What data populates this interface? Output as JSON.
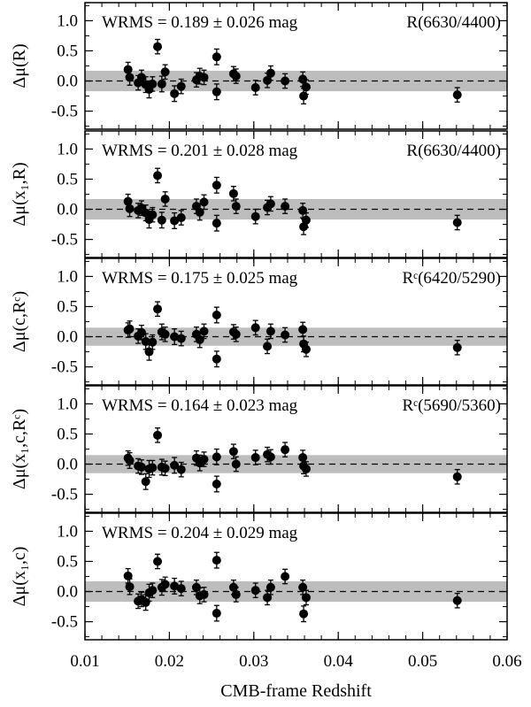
{
  "chart_data": {
    "type": "scatter",
    "xlabel": "CMB-frame Redshift",
    "xlim": [
      0.01,
      0.06
    ],
    "x_ticks": [
      "0.01",
      "0.02",
      "0.03",
      "0.04",
      "0.05",
      "0.06"
    ],
    "ylim": [
      -0.8,
      1.3
    ],
    "y_ticks": [
      "-0.5",
      "0.0",
      "0.5",
      "1.0"
    ],
    "zero_line": "dashed",
    "band_halfwidth": 0.17,
    "marker_color": "#000000",
    "band_color": "#bdbdbd",
    "panels": [
      {
        "ylabel": "Δμ(R)",
        "wrms": "WRMS = 0.189 ± 0.026 mag",
        "tag": "R(6630/4400)",
        "band": 0.17,
        "points": [
          {
            "x": 0.0151,
            "y": 0.19,
            "e": 0.12
          },
          {
            "x": 0.0153,
            "y": 0.06,
            "e": 0.13
          },
          {
            "x": 0.0163,
            "y": -0.03,
            "e": 0.12
          },
          {
            "x": 0.0167,
            "y": 0.06,
            "e": 0.12
          },
          {
            "x": 0.0172,
            "y": -0.06,
            "e": 0.13
          },
          {
            "x": 0.0176,
            "y": -0.14,
            "e": 0.14
          },
          {
            "x": 0.018,
            "y": -0.05,
            "e": 0.12
          },
          {
            "x": 0.0186,
            "y": 0.57,
            "e": 0.12
          },
          {
            "x": 0.0191,
            "y": -0.05,
            "e": 0.13
          },
          {
            "x": 0.0195,
            "y": 0.15,
            "e": 0.12
          },
          {
            "x": 0.0206,
            "y": -0.21,
            "e": 0.13
          },
          {
            "x": 0.0214,
            "y": -0.09,
            "e": 0.12
          },
          {
            "x": 0.0232,
            "y": 0.02,
            "e": 0.12
          },
          {
            "x": 0.0236,
            "y": 0.08,
            "e": 0.13
          },
          {
            "x": 0.0241,
            "y": 0.06,
            "e": 0.12
          },
          {
            "x": 0.0256,
            "y": 0.4,
            "e": 0.13
          },
          {
            "x": 0.0256,
            "y": -0.18,
            "e": 0.13
          },
          {
            "x": 0.0276,
            "y": 0.12,
            "e": 0.12
          },
          {
            "x": 0.0279,
            "y": 0.08,
            "e": 0.12
          },
          {
            "x": 0.0302,
            "y": -0.11,
            "e": 0.12
          },
          {
            "x": 0.0316,
            "y": 0.01,
            "e": 0.12
          },
          {
            "x": 0.032,
            "y": 0.13,
            "e": 0.12
          },
          {
            "x": 0.0337,
            "y": 0.0,
            "e": 0.12
          },
          {
            "x": 0.0358,
            "y": 0.03,
            "e": 0.12
          },
          {
            "x": 0.0359,
            "y": -0.25,
            "e": 0.13
          },
          {
            "x": 0.0362,
            "y": -0.1,
            "e": 0.12
          },
          {
            "x": 0.0541,
            "y": -0.23,
            "e": 0.12
          }
        ]
      },
      {
        "ylabel": "Δμ(x₁,R)",
        "wrms": "WRMS = 0.201 ± 0.028 mag",
        "tag": "R(6630/4400)",
        "band": 0.17,
        "points": [
          {
            "x": 0.0151,
            "y": 0.13,
            "e": 0.12
          },
          {
            "x": 0.0153,
            "y": 0.01,
            "e": 0.13
          },
          {
            "x": 0.0163,
            "y": -0.02,
            "e": 0.12
          },
          {
            "x": 0.0167,
            "y": 0.02,
            "e": 0.12
          },
          {
            "x": 0.0172,
            "y": -0.06,
            "e": 0.13
          },
          {
            "x": 0.0176,
            "y": -0.17,
            "e": 0.14
          },
          {
            "x": 0.018,
            "y": -0.09,
            "e": 0.12
          },
          {
            "x": 0.0186,
            "y": 0.56,
            "e": 0.12
          },
          {
            "x": 0.0191,
            "y": -0.18,
            "e": 0.13
          },
          {
            "x": 0.0195,
            "y": 0.17,
            "e": 0.12
          },
          {
            "x": 0.0206,
            "y": -0.19,
            "e": 0.13
          },
          {
            "x": 0.0214,
            "y": -0.14,
            "e": 0.12
          },
          {
            "x": 0.0232,
            "y": 0.05,
            "e": 0.12
          },
          {
            "x": 0.0236,
            "y": -0.05,
            "e": 0.13
          },
          {
            "x": 0.0241,
            "y": 0.12,
            "e": 0.12
          },
          {
            "x": 0.0256,
            "y": 0.4,
            "e": 0.13
          },
          {
            "x": 0.0256,
            "y": -0.23,
            "e": 0.13
          },
          {
            "x": 0.0276,
            "y": 0.26,
            "e": 0.12
          },
          {
            "x": 0.0279,
            "y": 0.05,
            "e": 0.12
          },
          {
            "x": 0.0302,
            "y": -0.12,
            "e": 0.12
          },
          {
            "x": 0.0316,
            "y": 0.03,
            "e": 0.12
          },
          {
            "x": 0.032,
            "y": 0.09,
            "e": 0.12
          },
          {
            "x": 0.0337,
            "y": 0.05,
            "e": 0.12
          },
          {
            "x": 0.0358,
            "y": -0.02,
            "e": 0.12
          },
          {
            "x": 0.0359,
            "y": -0.29,
            "e": 0.13
          },
          {
            "x": 0.0362,
            "y": -0.18,
            "e": 0.12
          },
          {
            "x": 0.0541,
            "y": -0.22,
            "e": 0.12
          }
        ]
      },
      {
        "ylabel": "Δμ(c,Rᶜ)",
        "wrms": "WRMS = 0.175 ± 0.025 mag",
        "tag": "Rᶜ(6420/5290)",
        "band": 0.15,
        "points": [
          {
            "x": 0.0151,
            "y": 0.11,
            "e": 0.12
          },
          {
            "x": 0.0153,
            "y": 0.13,
            "e": 0.13
          },
          {
            "x": 0.0163,
            "y": 0.01,
            "e": 0.12
          },
          {
            "x": 0.0167,
            "y": 0.07,
            "e": 0.12
          },
          {
            "x": 0.0172,
            "y": -0.08,
            "e": 0.13
          },
          {
            "x": 0.0176,
            "y": -0.25,
            "e": 0.14
          },
          {
            "x": 0.018,
            "y": -0.09,
            "e": 0.12
          },
          {
            "x": 0.0186,
            "y": 0.46,
            "e": 0.12
          },
          {
            "x": 0.0191,
            "y": 0.08,
            "e": 0.13
          },
          {
            "x": 0.0195,
            "y": 0.04,
            "e": 0.12
          },
          {
            "x": 0.0206,
            "y": 0.0,
            "e": 0.13
          },
          {
            "x": 0.0214,
            "y": -0.03,
            "e": 0.12
          },
          {
            "x": 0.0232,
            "y": 0.04,
            "e": 0.12
          },
          {
            "x": 0.0236,
            "y": -0.05,
            "e": 0.13
          },
          {
            "x": 0.0241,
            "y": 0.09,
            "e": 0.12
          },
          {
            "x": 0.0256,
            "y": 0.36,
            "e": 0.13
          },
          {
            "x": 0.0256,
            "y": -0.37,
            "e": 0.13
          },
          {
            "x": 0.0276,
            "y": 0.08,
            "e": 0.12
          },
          {
            "x": 0.0279,
            "y": 0.04,
            "e": 0.12
          },
          {
            "x": 0.0302,
            "y": 0.15,
            "e": 0.12
          },
          {
            "x": 0.0316,
            "y": -0.16,
            "e": 0.12
          },
          {
            "x": 0.032,
            "y": 0.09,
            "e": 0.12
          },
          {
            "x": 0.0337,
            "y": 0.03,
            "e": 0.12
          },
          {
            "x": 0.0358,
            "y": 0.12,
            "e": 0.12
          },
          {
            "x": 0.0359,
            "y": -0.12,
            "e": 0.13
          },
          {
            "x": 0.0362,
            "y": -0.21,
            "e": 0.12
          },
          {
            "x": 0.0541,
            "y": -0.18,
            "e": 0.12
          }
        ]
      },
      {
        "ylabel": "Δμ(x₁,c,Rᶜ)",
        "wrms": "WRMS = 0.164 ± 0.023 mag",
        "tag": "Rᶜ(5690/5360)",
        "band": 0.15,
        "points": [
          {
            "x": 0.0151,
            "y": 0.1,
            "e": 0.12
          },
          {
            "x": 0.0153,
            "y": 0.06,
            "e": 0.13
          },
          {
            "x": 0.0163,
            "y": -0.03,
            "e": 0.12
          },
          {
            "x": 0.0167,
            "y": -0.05,
            "e": 0.12
          },
          {
            "x": 0.0172,
            "y": -0.29,
            "e": 0.13
          },
          {
            "x": 0.0176,
            "y": -0.08,
            "e": 0.14
          },
          {
            "x": 0.018,
            "y": -0.06,
            "e": 0.12
          },
          {
            "x": 0.0186,
            "y": 0.48,
            "e": 0.12
          },
          {
            "x": 0.0191,
            "y": -0.05,
            "e": 0.13
          },
          {
            "x": 0.0195,
            "y": -0.07,
            "e": 0.12
          },
          {
            "x": 0.0206,
            "y": -0.02,
            "e": 0.13
          },
          {
            "x": 0.0214,
            "y": -0.09,
            "e": 0.12
          },
          {
            "x": 0.0232,
            "y": 0.1,
            "e": 0.12
          },
          {
            "x": 0.0236,
            "y": 0.02,
            "e": 0.13
          },
          {
            "x": 0.0241,
            "y": 0.08,
            "e": 0.12
          },
          {
            "x": 0.0256,
            "y": 0.12,
            "e": 0.13
          },
          {
            "x": 0.0256,
            "y": -0.33,
            "e": 0.13
          },
          {
            "x": 0.0276,
            "y": 0.21,
            "e": 0.12
          },
          {
            "x": 0.0279,
            "y": 0.0,
            "e": 0.12
          },
          {
            "x": 0.0302,
            "y": 0.11,
            "e": 0.12
          },
          {
            "x": 0.0316,
            "y": 0.16,
            "e": 0.12
          },
          {
            "x": 0.032,
            "y": 0.12,
            "e": 0.12
          },
          {
            "x": 0.0337,
            "y": 0.24,
            "e": 0.12
          },
          {
            "x": 0.0358,
            "y": 0.11,
            "e": 0.12
          },
          {
            "x": 0.0359,
            "y": -0.03,
            "e": 0.13
          },
          {
            "x": 0.0362,
            "y": -0.08,
            "e": 0.12
          },
          {
            "x": 0.0541,
            "y": -0.21,
            "e": 0.12
          }
        ]
      },
      {
        "ylabel": "Δμ(x₁,c)",
        "wrms": "WRMS = 0.204 ± 0.029 mag",
        "tag": "",
        "band": 0.17,
        "points": [
          {
            "x": 0.0151,
            "y": 0.26,
            "e": 0.12
          },
          {
            "x": 0.0153,
            "y": 0.08,
            "e": 0.13
          },
          {
            "x": 0.0163,
            "y": -0.16,
            "e": 0.12
          },
          {
            "x": 0.0167,
            "y": -0.13,
            "e": 0.12
          },
          {
            "x": 0.0172,
            "y": -0.18,
            "e": 0.13
          },
          {
            "x": 0.0176,
            "y": -0.02,
            "e": 0.14
          },
          {
            "x": 0.018,
            "y": 0.02,
            "e": 0.12
          },
          {
            "x": 0.0186,
            "y": 0.5,
            "e": 0.12
          },
          {
            "x": 0.0191,
            "y": 0.07,
            "e": 0.13
          },
          {
            "x": 0.0195,
            "y": 0.12,
            "e": 0.12
          },
          {
            "x": 0.0206,
            "y": 0.09,
            "e": 0.13
          },
          {
            "x": 0.0214,
            "y": 0.05,
            "e": 0.12
          },
          {
            "x": 0.0232,
            "y": 0.07,
            "e": 0.12
          },
          {
            "x": 0.0236,
            "y": -0.07,
            "e": 0.13
          },
          {
            "x": 0.0241,
            "y": -0.05,
            "e": 0.12
          },
          {
            "x": 0.0256,
            "y": 0.52,
            "e": 0.13
          },
          {
            "x": 0.0256,
            "y": -0.36,
            "e": 0.13
          },
          {
            "x": 0.0276,
            "y": 0.07,
            "e": 0.12
          },
          {
            "x": 0.0279,
            "y": -0.05,
            "e": 0.12
          },
          {
            "x": 0.0302,
            "y": 0.02,
            "e": 0.12
          },
          {
            "x": 0.0316,
            "y": -0.1,
            "e": 0.12
          },
          {
            "x": 0.032,
            "y": 0.07,
            "e": 0.12
          },
          {
            "x": 0.0337,
            "y": 0.25,
            "e": 0.12
          },
          {
            "x": 0.0358,
            "y": 0.07,
            "e": 0.12
          },
          {
            "x": 0.0359,
            "y": -0.37,
            "e": 0.13
          },
          {
            "x": 0.0362,
            "y": -0.1,
            "e": 0.12
          },
          {
            "x": 0.0541,
            "y": -0.15,
            "e": 0.12
          }
        ]
      }
    ]
  }
}
